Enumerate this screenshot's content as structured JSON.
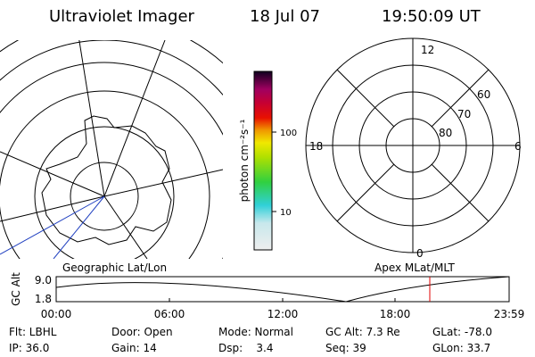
{
  "header": {
    "title": "Ultraviolet Imager",
    "date": "18 Jul 07",
    "time": "19:50:09 UT"
  },
  "colorbar": {
    "label": "photon cm⁻²s⁻¹",
    "ticks": [
      "100",
      "10"
    ]
  },
  "polar": {
    "top": "12",
    "bottom": "0",
    "left": "18",
    "right": "6",
    "rings": [
      "60",
      "70",
      "80"
    ]
  },
  "timeline": {
    "left_label": "Geographic Lat/Lon",
    "right_label": "Apex MLat/MLT",
    "y_label": "GC Alt",
    "yticks": [
      "9.0",
      "1.8"
    ],
    "xticks": [
      "00:00",
      "06:00",
      "12:00",
      "18:00",
      "23:59"
    ]
  },
  "info": {
    "rows": [
      [
        "Flt: LBHL",
        "Door: Open",
        "Mode: Normal",
        "GC Alt: 7.3 Re",
        "GLat: -78.0"
      ],
      [
        "IP: 36.0",
        "Gain: 14",
        "Dsp:    3.4",
        "Seq: 39",
        "GLon: 33.7"
      ]
    ]
  }
}
